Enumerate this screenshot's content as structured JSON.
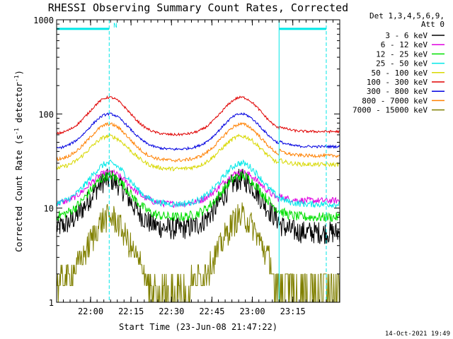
{
  "chart_data": {
    "type": "line",
    "title": "RHESSI Observing Summary Count Rates, Corrected",
    "xlabel": "Start Time (23-Jun-08 21:47:22)",
    "ylabel_prefix": "Corrected Count Rate (s",
    "ylabel_sup1": "-1",
    "ylabel_mid": " detector",
    "ylabel_sup2": "-1",
    "ylabel_suffix": ")",
    "y_scale": "log",
    "ylim": [
      1,
      1000
    ],
    "xlim_minutes": [
      0,
      105
    ],
    "xlim": [
      "21:47:22",
      "23:32:22"
    ],
    "x_ticks": [
      "22:00",
      "22:15",
      "22:30",
      "22:45",
      "23:00",
      "23:15"
    ],
    "x_tick_minutes": [
      12.6,
      27.6,
      42.6,
      57.6,
      72.6,
      87.6
    ],
    "y_tick_labels": [
      "1",
      "10",
      "100",
      "1000"
    ],
    "y_tick_values": [
      1,
      10,
      100,
      1000
    ],
    "legend_header": [
      "Det 1,3,4,5,6,9,",
      "Att 0"
    ],
    "legend_placement": "right",
    "series": [
      {
        "name": "3 - 6 keV",
        "color": "#000000",
        "peak": 20,
        "base": 6,
        "night": 5.5,
        "noise": 0.28
      },
      {
        "name": "6 - 12 keV",
        "color": "#e000e0",
        "peak": 24,
        "base": 11,
        "night": 12,
        "noise": 0.08
      },
      {
        "name": "12 - 25 keV",
        "color": "#00e000",
        "peak": 22,
        "base": 8,
        "night": 8,
        "noise": 0.12
      },
      {
        "name": "25 - 50 keV",
        "color": "#00e8e8",
        "peak": 30,
        "base": 11,
        "night": 11,
        "noise": 0.08
      },
      {
        "name": "50 - 100 keV",
        "color": "#d8d800",
        "peak": 58,
        "base": 26,
        "night": 29,
        "noise": 0.05
      },
      {
        "name": "100 - 300 keV",
        "color": "#e00000",
        "peak": 150,
        "base": 60,
        "night": 65,
        "noise": 0.03
      },
      {
        "name": "300 - 800 keV",
        "color": "#0000e0",
        "peak": 100,
        "base": 42,
        "night": 45,
        "noise": 0.03
      },
      {
        "name": "800 - 7000 keV",
        "color": "#ff8000",
        "peak": 78,
        "base": 32,
        "night": 36,
        "noise": 0.04
      },
      {
        "name": "7000 - 15000 keV",
        "color": "#808000",
        "peak": 8,
        "base": 1.5,
        "night": 1.5,
        "noise": 0.35
      }
    ],
    "peaks_minutes": [
      19.5,
      68.5
    ],
    "flags": [
      {
        "label": "N",
        "start_minutes": 0,
        "end_minutes": 19.5
      },
      {
        "label": "",
        "start_minutes": 82.5,
        "end_minutes": 100
      }
    ],
    "night_markers_minutes": [
      19.5,
      82.5,
      100
    ],
    "flag_level": 800
  },
  "footer_date": "14-Oct-2021 19:49"
}
